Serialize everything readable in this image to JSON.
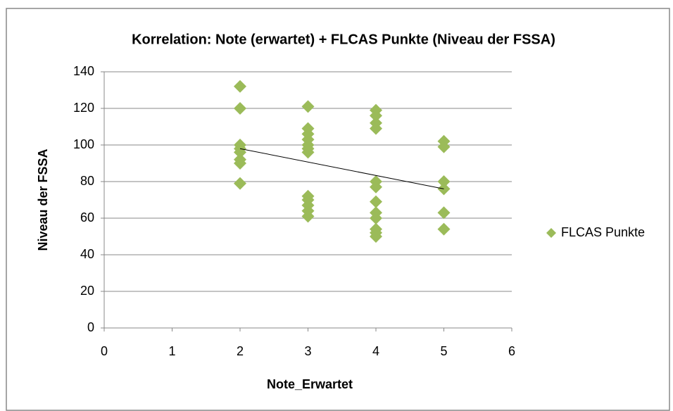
{
  "chart_data": {
    "type": "scatter",
    "title": "Korrelation: Note (erwartet) + FLCAS Punkte (Niveau der FSSA)",
    "x_label": "Note_Erwartet",
    "y_label": "Niveau der FSSA",
    "xlim": [
      0,
      6
    ],
    "xticks": [
      0,
      1,
      2,
      3,
      4,
      5,
      6
    ],
    "ylim": [
      0,
      140
    ],
    "yticks": [
      0,
      20,
      40,
      60,
      80,
      100,
      120,
      140
    ],
    "grid": true,
    "legend": "right",
    "series": [
      {
        "name": "FLCAS Punkte",
        "color": "#9bbb59",
        "x": [
          2,
          2,
          2,
          2,
          2,
          2,
          2,
          2,
          3,
          3,
          3,
          3,
          3,
          3,
          3,
          3,
          3,
          3,
          3,
          3,
          4,
          4,
          4,
          4,
          4,
          4,
          4,
          4,
          4,
          4,
          4,
          4,
          5,
          5,
          5,
          5,
          5,
          5
        ],
        "values": [
          132,
          120,
          100,
          98,
          96,
          92,
          90,
          79,
          121,
          109,
          106,
          103,
          100,
          98,
          96,
          72,
          70,
          67,
          64,
          61,
          119,
          116,
          112,
          109,
          80,
          77,
          69,
          63,
          60,
          54,
          52,
          50,
          102,
          99,
          80,
          76,
          63,
          54
        ]
      }
    ],
    "trendline": {
      "color": "#000000",
      "x": [
        2,
        5
      ],
      "values": [
        98,
        76
      ]
    }
  }
}
